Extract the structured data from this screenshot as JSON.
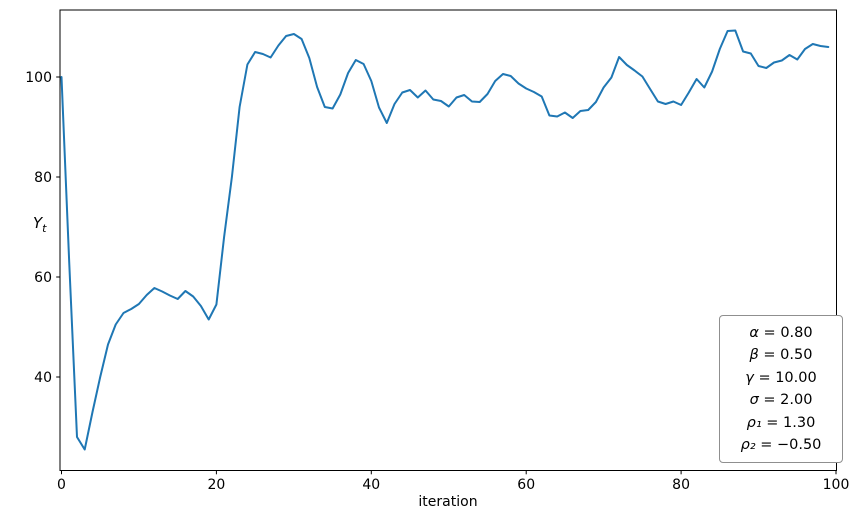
{
  "figure": {
    "background": "#ffffff",
    "xlabel": "iteration",
    "ylabel_base": "Y",
    "ylabel_sub": "t"
  },
  "param_box": {
    "lines": [
      {
        "symbol": "α",
        "rest": " = 0.80"
      },
      {
        "symbol": "β",
        "rest": " = 0.50"
      },
      {
        "symbol": "γ",
        "rest": " = 10.00"
      },
      {
        "symbol": "σ",
        "rest": " = 2.00"
      },
      {
        "symbol": "ρ₁",
        "rest": " = 1.30"
      },
      {
        "symbol": "ρ₂",
        "rest": " = −0.50"
      }
    ]
  },
  "chart_data": {
    "type": "line",
    "title": "",
    "xlabel": "iteration",
    "ylabel": "Y_t",
    "legend_position": "none",
    "grid": false,
    "line_color": "#1f77b4",
    "axis_color": "#000000",
    "x_ticks": [
      0,
      20,
      40,
      60,
      80,
      100
    ],
    "y_ticks": [
      40,
      60,
      80,
      100
    ],
    "xlim": [
      -0.2,
      100.3
    ],
    "ylim": [
      21.4,
      113.5
    ],
    "annotations": [
      "α = 0.80",
      "β = 0.50",
      "γ = 10.00",
      "σ = 2.00",
      "ρ₁ = 1.30",
      "ρ₂ = −0.50"
    ],
    "x": [
      0,
      1,
      2,
      3,
      4,
      5,
      6,
      7,
      8,
      9,
      10,
      11,
      12,
      13,
      14,
      15,
      16,
      17,
      18,
      19,
      20,
      21,
      22,
      23,
      24,
      25,
      26,
      27,
      28,
      29,
      30,
      31,
      32,
      33,
      34,
      35,
      36,
      37,
      38,
      39,
      40,
      41,
      42,
      43,
      44,
      45,
      46,
      47,
      48,
      49,
      50,
      51,
      52,
      53,
      54,
      55,
      56,
      57,
      58,
      59,
      60,
      61,
      62,
      63,
      64,
      65,
      66,
      67,
      68,
      69,
      70,
      71,
      72,
      73,
      74,
      75,
      76,
      77,
      78,
      79,
      80,
      81,
      82,
      83,
      84,
      85,
      86,
      87,
      88,
      89,
      90,
      91,
      92,
      93,
      94,
      95,
      96,
      97,
      98,
      99
    ],
    "y": [
      100.0,
      63.0,
      28.0,
      25.5,
      33.0,
      40.0,
      46.5,
      50.5,
      52.8,
      53.6,
      54.6,
      56.4,
      57.8,
      57.1,
      56.3,
      55.6,
      57.2,
      56.1,
      54.2,
      51.5,
      54.5,
      68.0,
      80.0,
      94.0,
      102.5,
      105.0,
      104.6,
      103.9,
      106.3,
      108.2,
      108.6,
      107.6,
      103.8,
      98.0,
      94.0,
      93.7,
      96.5,
      100.8,
      103.4,
      102.6,
      99.2,
      93.9,
      90.8,
      94.6,
      96.9,
      97.4,
      95.9,
      97.3,
      95.5,
      95.2,
      94.1,
      95.9,
      96.4,
      95.1,
      95.0,
      96.6,
      99.2,
      100.6,
      100.2,
      98.7,
      97.7,
      97.0,
      96.1,
      92.3,
      92.1,
      92.9,
      91.8,
      93.2,
      93.4,
      95.0,
      97.9,
      99.9,
      104.0,
      102.4,
      101.3,
      100.1,
      97.6,
      95.1,
      94.6,
      95.1,
      94.4,
      96.9,
      99.6,
      97.9,
      101.1,
      105.6,
      109.2,
      109.3,
      105.1,
      104.7,
      102.2,
      101.8,
      102.9,
      103.3,
      104.4,
      103.5,
      105.6,
      106.6,
      106.2,
      106.0
    ]
  }
}
